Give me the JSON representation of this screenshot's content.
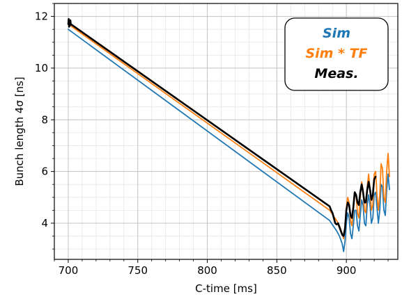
{
  "chart_data": {
    "type": "line",
    "xlabel": "C-time [ms]",
    "ylabel": "Bunch length 4σ [ns]",
    "xlim": [
      690,
      937
    ],
    "ylim": [
      2.6,
      12.5
    ],
    "xticks": [
      700,
      750,
      800,
      850,
      900
    ],
    "yticks": [
      4,
      6,
      8,
      10,
      12
    ],
    "grid": true,
    "legend_position": "top-right",
    "colors": {
      "Sim": "#1f77b4",
      "Sim * TF": "#ff7f0e",
      "Meas.": "#000000"
    },
    "series": [
      {
        "name": "Sim",
        "x": [
          700,
          888,
          893,
          895,
          897,
          898,
          899,
          900,
          901,
          902,
          903,
          904,
          905,
          906,
          907,
          908,
          909,
          910,
          911,
          912,
          913,
          914,
          915,
          916,
          917,
          918,
          919,
          920,
          921,
          922,
          923,
          924,
          925,
          926,
          927,
          928,
          929,
          930,
          931
        ],
        "y": [
          11.5,
          4.1,
          3.7,
          3.5,
          3.2,
          2.9,
          3.3,
          4.0,
          4.4,
          4.2,
          3.6,
          3.4,
          3.9,
          4.5,
          4.5,
          3.9,
          3.7,
          4.3,
          4.9,
          4.7,
          4.0,
          3.9,
          4.7,
          5.1,
          4.7,
          4.0,
          4.2,
          5.1,
          5.2,
          4.6,
          4.0,
          4.5,
          5.5,
          5.4,
          4.5,
          4.3,
          5.3,
          5.9,
          5.3
        ]
      },
      {
        "name": "Sim * TF",
        "x": [
          700,
          888,
          893,
          895,
          897,
          898,
          899,
          900,
          901,
          902,
          903,
          904,
          905,
          906,
          907,
          908,
          909,
          910,
          911,
          912,
          913,
          914,
          915,
          916,
          917,
          918,
          919,
          920,
          921,
          922,
          923,
          924,
          925,
          926,
          927,
          928,
          929,
          930,
          931
        ],
        "y": [
          11.7,
          4.5,
          4.1,
          3.9,
          3.6,
          3.4,
          3.8,
          4.6,
          5.0,
          4.8,
          4.1,
          3.9,
          4.5,
          5.2,
          5.1,
          4.4,
          4.2,
          5.0,
          5.6,
          5.3,
          4.5,
          4.4,
          5.4,
          5.9,
          5.3,
          4.5,
          4.7,
          5.9,
          6.0,
          5.1,
          4.5,
          5.1,
          6.3,
          6.1,
          5.0,
          4.8,
          6.0,
          6.7,
          5.8
        ]
      },
      {
        "name": "Meas.",
        "x": [
          700,
          700.3,
          700.6,
          700.9,
          701.2,
          701.5,
          701.8,
          888,
          889,
          890,
          891,
          892,
          893,
          894,
          895,
          896,
          897,
          898,
          899,
          900,
          901,
          902,
          903,
          904,
          905,
          906,
          907,
          908,
          909,
          910,
          911,
          912,
          913,
          914,
          915,
          916,
          917,
          918,
          919,
          920,
          921
        ],
        "y": [
          11.7,
          11.9,
          11.6,
          11.8,
          11.65,
          11.85,
          11.7,
          4.65,
          4.5,
          4.4,
          4.2,
          4.0,
          3.95,
          4.0,
          3.85,
          3.7,
          3.55,
          3.5,
          3.8,
          4.5,
          4.8,
          4.7,
          4.3,
          4.2,
          4.6,
          5.2,
          5.1,
          4.8,
          4.7,
          5.2,
          5.5,
          5.2,
          4.8,
          4.8,
          5.3,
          5.6,
          5.3,
          4.9,
          5.1,
          5.7,
          5.8
        ]
      }
    ]
  }
}
